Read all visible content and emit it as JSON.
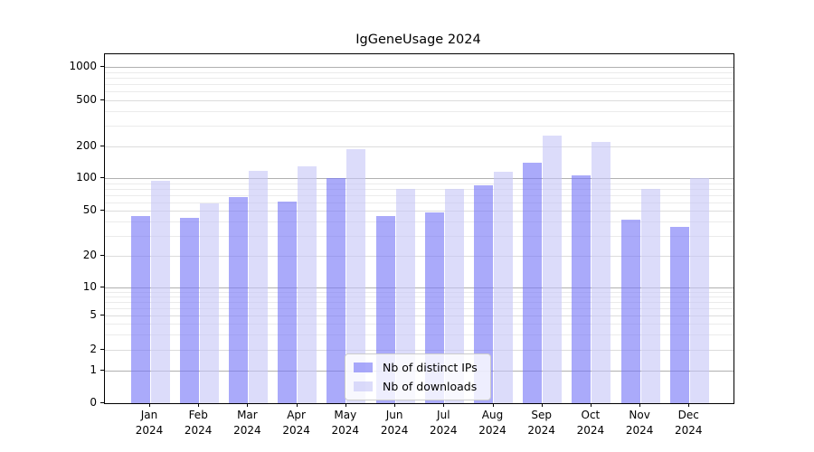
{
  "chart_data": {
    "type": "bar",
    "title": "IgGeneUsage 2024",
    "categories": [
      "Jan 2024",
      "Feb 2024",
      "Mar 2024",
      "Apr 2024",
      "May 2024",
      "Jun 2024",
      "Jul 2024",
      "Aug 2024",
      "Sep 2024",
      "Oct 2024",
      "Nov 2024",
      "Dec 2024"
    ],
    "series": [
      {
        "name": "Nb of distinct IPs",
        "color": "rgba(118,118,247,0.62)",
        "values": [
          45,
          43,
          67,
          61,
          100,
          45,
          48,
          85,
          140,
          106,
          42,
          36
        ]
      },
      {
        "name": "Nb of downloads",
        "color": "rgba(198,198,247,0.62)",
        "values": [
          95,
          58,
          118,
          129,
          189,
          79,
          79,
          116,
          250,
          218,
          80,
          101
        ]
      }
    ],
    "xlabel": "",
    "ylabel": "",
    "yscale": "symlog-like (log above 1, linear 0-1)",
    "ylim": [
      0,
      1300
    ],
    "y_ticks": [
      0,
      1,
      2,
      5,
      10,
      20,
      50,
      100,
      200,
      500,
      1000
    ],
    "y_minor_ticks": [
      3,
      4,
      6,
      7,
      8,
      9,
      30,
      40,
      60,
      70,
      80,
      90,
      300,
      400,
      600,
      700,
      800,
      900
    ],
    "grid": true,
    "legend_position": "lower center"
  },
  "colors": {
    "grid_major_pow10": "#b0b0b0",
    "grid_labeled": "#dcdcdc",
    "grid_minor": "#ebebeb",
    "spine": "#000000",
    "text": "#000000",
    "legend_border": "#cccccc",
    "legend_background": "rgba(255,255,255,0.8)"
  }
}
